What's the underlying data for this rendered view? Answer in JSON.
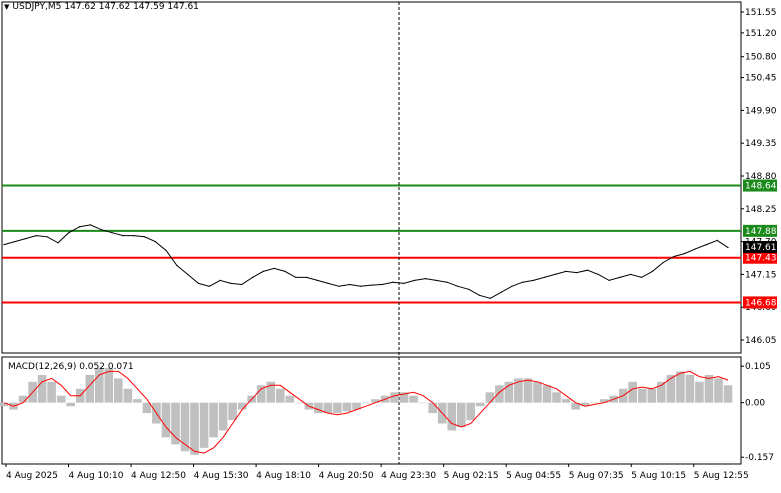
{
  "header": {
    "symbol": "USDJPY,M5",
    "ohlc": "147.62 147.62 147.59 147.61",
    "menu_icon": "triangle-down-icon"
  },
  "colors": {
    "price_line": "#000000",
    "green_level": "#1a8a1a",
    "red_level": "#ff0000",
    "current_price_bg": "#000000",
    "histogram": "#c0c0c0",
    "signal_line": "#ff0000",
    "crosshair": "#000000"
  },
  "chart_data": [
    {
      "type": "line",
      "title": "USDJPY,M5",
      "ylim": [
        146.0,
        151.65
      ],
      "yticks": [
        "151.55",
        "151.20",
        "150.80",
        "150.45",
        "149.90",
        "149.35",
        "148.80",
        "148.25",
        "147.70",
        "147.15",
        "146.60",
        "146.05"
      ],
      "x_labels": [
        "4 Aug 2025",
        "4 Aug 10:10",
        "4 Aug 12:50",
        "4 Aug 15:30",
        "4 Aug 18:10",
        "4 Aug 20:50",
        "4 Aug 23:30",
        "5 Aug 02:15",
        "5 Aug 04:55",
        "5 Aug 07:35",
        "5 Aug 10:15",
        "5 Aug 12:55"
      ],
      "series": [
        {
          "values": [
            147.65,
            147.7,
            147.75,
            147.8,
            147.78,
            147.68,
            147.85,
            147.95,
            147.98,
            147.9,
            147.85,
            147.8,
            147.8,
            147.78,
            147.7,
            147.55,
            147.3,
            147.15,
            147.0,
            146.95,
            147.05,
            147.0,
            146.98,
            147.1,
            147.2,
            147.25,
            147.2,
            147.1,
            147.1,
            147.05,
            147.0,
            146.95,
            146.98,
            146.95,
            146.97,
            146.98,
            147.02,
            147.0,
            147.05,
            147.08,
            147.05,
            147.02,
            146.95,
            146.9,
            146.8,
            146.75,
            146.85,
            146.95,
            147.02,
            147.05,
            147.1,
            147.15,
            147.2,
            147.18,
            147.22,
            147.15,
            147.05,
            147.1,
            147.15,
            147.1,
            147.2,
            147.35,
            147.45,
            147.5,
            147.58,
            147.65,
            147.72,
            147.6
          ]
        }
      ],
      "levels": [
        {
          "value": 148.64,
          "label": "148.64",
          "color": "#1a8a1a"
        },
        {
          "value": 147.88,
          "label": "147.88",
          "color": "#1a8a1a"
        },
        {
          "value": 147.43,
          "label": "147.43",
          "color": "#ff0000"
        },
        {
          "value": 146.68,
          "label": "146.68",
          "color": "#ff0000"
        }
      ],
      "current_price": {
        "value": 147.61,
        "label": "147.61"
      },
      "grid": false
    },
    {
      "type": "bar",
      "title": "MACD(12,26,9) 0.052 0.071",
      "ylim": [
        -0.165,
        0.12
      ],
      "yticks": [
        "0.105",
        "0.00",
        "-0.157"
      ],
      "series": [
        {
          "name": "MACD",
          "values": [
            -0.01,
            -0.02,
            0.02,
            0.06,
            0.08,
            0.06,
            0.02,
            -0.01,
            0.04,
            0.08,
            0.1,
            0.1,
            0.07,
            0.04,
            0.01,
            -0.03,
            -0.06,
            -0.1,
            -0.12,
            -0.14,
            -0.15,
            -0.13,
            -0.1,
            -0.08,
            -0.05,
            -0.02,
            0.02,
            0.05,
            0.06,
            0.04,
            0.02,
            0.0,
            -0.02,
            -0.03,
            -0.03,
            -0.03,
            -0.025,
            -0.02,
            0.0,
            0.01,
            0.02,
            0.03,
            0.03,
            0.02,
            0.0,
            -0.03,
            -0.06,
            -0.08,
            -0.07,
            -0.05,
            -0.01,
            0.03,
            0.05,
            0.06,
            0.07,
            0.07,
            0.06,
            0.05,
            0.03,
            0.01,
            -0.02,
            -0.01,
            0.0,
            0.01,
            0.02,
            0.04,
            0.06,
            0.04,
            0.04,
            0.06,
            0.08,
            0.09,
            0.08,
            0.06,
            0.08,
            0.07,
            0.05
          ]
        },
        {
          "name": "Signal",
          "values": [
            0.0,
            -0.01,
            0.0,
            0.03,
            0.06,
            0.07,
            0.05,
            0.02,
            0.02,
            0.05,
            0.08,
            0.09,
            0.09,
            0.07,
            0.04,
            0.01,
            -0.03,
            -0.07,
            -0.1,
            -0.12,
            -0.14,
            -0.145,
            -0.13,
            -0.1,
            -0.06,
            -0.02,
            0.01,
            0.04,
            0.05,
            0.05,
            0.03,
            0.01,
            -0.01,
            -0.02,
            -0.03,
            -0.035,
            -0.03,
            -0.02,
            -0.01,
            0.0,
            0.01,
            0.02,
            0.025,
            0.03,
            0.02,
            0.0,
            -0.03,
            -0.06,
            -0.07,
            -0.06,
            -0.03,
            0.0,
            0.03,
            0.05,
            0.06,
            0.065,
            0.06,
            0.05,
            0.04,
            0.02,
            0.0,
            -0.01,
            -0.005,
            0.0,
            0.01,
            0.02,
            0.04,
            0.045,
            0.04,
            0.05,
            0.07,
            0.085,
            0.09,
            0.075,
            0.07,
            0.075,
            0.065
          ]
        }
      ]
    }
  ]
}
